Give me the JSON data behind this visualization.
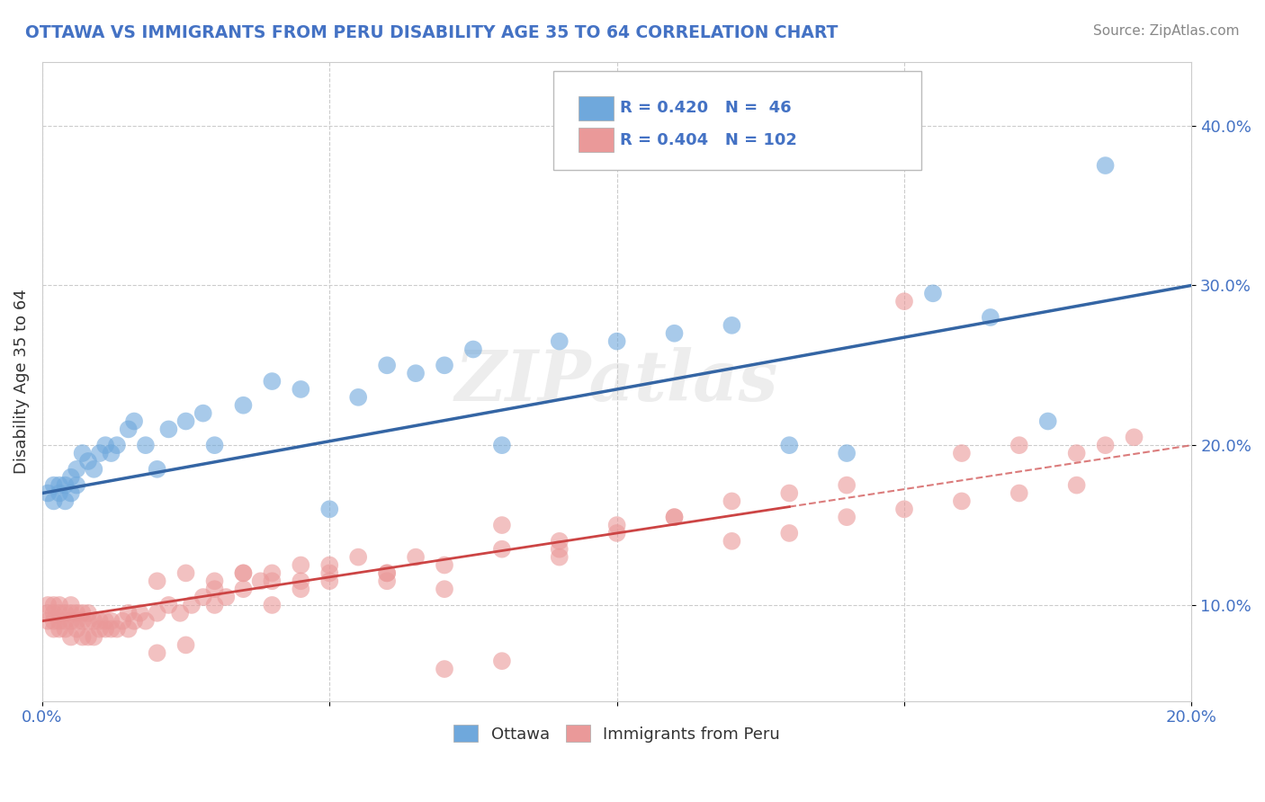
{
  "title": "OTTAWA VS IMMIGRANTS FROM PERU DISABILITY AGE 35 TO 64 CORRELATION CHART",
  "source": "Source: ZipAtlas.com",
  "ylabel": "Disability Age 35 to 64",
  "xlim": [
    0.0,
    0.2
  ],
  "ylim": [
    0.04,
    0.44
  ],
  "yticks": [
    0.1,
    0.2,
    0.3,
    0.4
  ],
  "ytick_labels": [
    "10.0%",
    "20.0%",
    "30.0%",
    "40.0%"
  ],
  "xticks": [
    0.0,
    0.05,
    0.1,
    0.15,
    0.2
  ],
  "xtick_labels": [
    "0.0%",
    "",
    "",
    "",
    "20.0%"
  ],
  "ottawa_color": "#6fa8dc",
  "peru_color": "#ea9999",
  "ottawa_line_color": "#3465a4",
  "peru_line_color": "#cc4444",
  "background_color": "#ffffff",
  "watermark": "ZIPatlas",
  "ottawa_intercept": 0.17,
  "ottawa_slope": 0.65,
  "peru_intercept": 0.09,
  "peru_slope": 0.55,
  "ottawa_x": [
    0.001,
    0.002,
    0.002,
    0.003,
    0.003,
    0.004,
    0.004,
    0.005,
    0.005,
    0.006,
    0.006,
    0.007,
    0.008,
    0.009,
    0.01,
    0.011,
    0.012,
    0.013,
    0.015,
    0.016,
    0.018,
    0.02,
    0.022,
    0.025,
    0.028,
    0.03,
    0.035,
    0.04,
    0.045,
    0.05,
    0.055,
    0.06,
    0.065,
    0.07,
    0.075,
    0.08,
    0.09,
    0.1,
    0.11,
    0.12,
    0.13,
    0.14,
    0.155,
    0.165,
    0.175,
    0.185
  ],
  "ottawa_y": [
    0.17,
    0.165,
    0.175,
    0.17,
    0.175,
    0.165,
    0.175,
    0.17,
    0.18,
    0.175,
    0.185,
    0.195,
    0.19,
    0.185,
    0.195,
    0.2,
    0.195,
    0.2,
    0.21,
    0.215,
    0.2,
    0.185,
    0.21,
    0.215,
    0.22,
    0.2,
    0.225,
    0.24,
    0.235,
    0.16,
    0.23,
    0.25,
    0.245,
    0.25,
    0.26,
    0.2,
    0.265,
    0.265,
    0.27,
    0.275,
    0.2,
    0.195,
    0.295,
    0.28,
    0.215,
    0.375
  ],
  "peru_x": [
    0.001,
    0.001,
    0.001,
    0.002,
    0.002,
    0.002,
    0.002,
    0.003,
    0.003,
    0.003,
    0.003,
    0.004,
    0.004,
    0.004,
    0.005,
    0.005,
    0.005,
    0.005,
    0.006,
    0.006,
    0.006,
    0.007,
    0.007,
    0.007,
    0.008,
    0.008,
    0.008,
    0.009,
    0.009,
    0.01,
    0.01,
    0.011,
    0.011,
    0.012,
    0.012,
    0.013,
    0.014,
    0.015,
    0.015,
    0.016,
    0.017,
    0.018,
    0.02,
    0.022,
    0.024,
    0.026,
    0.028,
    0.03,
    0.032,
    0.035,
    0.038,
    0.04,
    0.045,
    0.05,
    0.055,
    0.06,
    0.065,
    0.07,
    0.08,
    0.09,
    0.1,
    0.11,
    0.12,
    0.13,
    0.14,
    0.15,
    0.16,
    0.17,
    0.18,
    0.02,
    0.025,
    0.03,
    0.035,
    0.04,
    0.045,
    0.05,
    0.06,
    0.07,
    0.08,
    0.09,
    0.02,
    0.025,
    0.03,
    0.035,
    0.04,
    0.045,
    0.05,
    0.06,
    0.07,
    0.08,
    0.09,
    0.1,
    0.11,
    0.12,
    0.13,
    0.14,
    0.15,
    0.16,
    0.17,
    0.18,
    0.185,
    0.19
  ],
  "peru_y": [
    0.095,
    0.09,
    0.1,
    0.085,
    0.095,
    0.09,
    0.1,
    0.085,
    0.09,
    0.095,
    0.1,
    0.085,
    0.09,
    0.095,
    0.08,
    0.09,
    0.095,
    0.1,
    0.085,
    0.09,
    0.095,
    0.08,
    0.09,
    0.095,
    0.08,
    0.09,
    0.095,
    0.08,
    0.09,
    0.085,
    0.09,
    0.085,
    0.09,
    0.085,
    0.09,
    0.085,
    0.09,
    0.085,
    0.095,
    0.09,
    0.095,
    0.09,
    0.095,
    0.1,
    0.095,
    0.1,
    0.105,
    0.1,
    0.105,
    0.11,
    0.115,
    0.12,
    0.115,
    0.125,
    0.13,
    0.12,
    0.13,
    0.125,
    0.135,
    0.14,
    0.15,
    0.155,
    0.165,
    0.17,
    0.175,
    0.29,
    0.195,
    0.2,
    0.195,
    0.115,
    0.12,
    0.11,
    0.12,
    0.115,
    0.125,
    0.12,
    0.115,
    0.06,
    0.065,
    0.13,
    0.07,
    0.075,
    0.115,
    0.12,
    0.1,
    0.11,
    0.115,
    0.12,
    0.11,
    0.15,
    0.135,
    0.145,
    0.155,
    0.14,
    0.145,
    0.155,
    0.16,
    0.165,
    0.17,
    0.175,
    0.2,
    0.205
  ]
}
